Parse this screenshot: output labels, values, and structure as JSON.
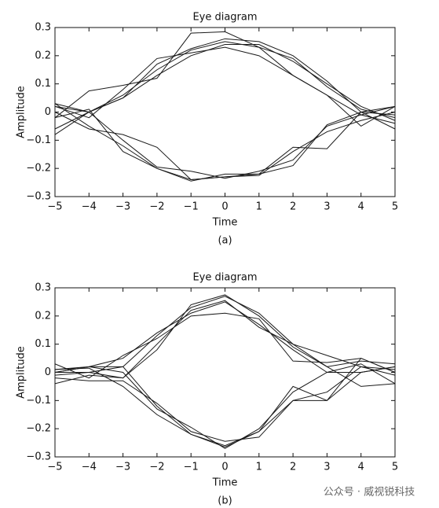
{
  "chart_data": [
    {
      "type": "line",
      "title": "Eye diagram",
      "xlabel": "Time",
      "ylabel": "Amplitude",
      "caption": "(a)",
      "x": [
        -5,
        -4,
        -3,
        -2,
        -1,
        0,
        1,
        2,
        3,
        4,
        5
      ],
      "xlim": [
        -5,
        5
      ],
      "ylim": [
        -0.3,
        0.3
      ],
      "xticks": [
        {
          "value": -5,
          "label": "−5"
        },
        {
          "value": -4,
          "label": "−4"
        },
        {
          "value": -3,
          "label": "−3"
        },
        {
          "value": -2,
          "label": "−2"
        },
        {
          "value": -1,
          "label": "−1"
        },
        0,
        1,
        2,
        3,
        4,
        5
      ],
      "yticks": [
        {
          "value": -0.3,
          "label": "−0.3"
        },
        {
          "value": -0.2,
          "label": "−0.2"
        },
        {
          "value": -0.1,
          "label": "−0.1"
        },
        0,
        0.1,
        0.2,
        0.3
      ],
      "grid": false,
      "series": [
        {
          "color": "#1a1a1a",
          "values": [
            0.03,
            0,
            0.05,
            0.13,
            0.2,
            0.24,
            0.24,
            0.18,
            0.1,
            0.02,
            -0.03
          ]
        },
        {
          "color": "#1a1a1a",
          "values": [
            -0.06,
            0,
            0.06,
            0.15,
            0.22,
            0.25,
            0.23,
            0.13,
            0.06,
            -0.01,
            0.02
          ]
        },
        {
          "color": "#1a1a1a",
          "values": [
            0.02,
            -0.02,
            0.08,
            0.19,
            0.21,
            0.23,
            0.2,
            0.13,
            0.06,
            -0.05,
            0.02
          ]
        },
        {
          "color": "#1a1a1a",
          "values": [
            -0.02,
            0.075,
            0.095,
            0.12,
            0.28,
            0.285,
            0.23,
            0.19,
            0.09,
            0.01,
            -0.02
          ]
        },
        {
          "color": "#1a1a1a",
          "values": [
            -0.08,
            0,
            0.05,
            0.17,
            0.225,
            0.26,
            0.25,
            0.2,
            0.11,
            0,
            -0.06
          ]
        },
        {
          "color": "#1a1a1a",
          "values": [
            0.03,
            -0.05,
            -0.12,
            -0.2,
            -0.245,
            -0.22,
            -0.22,
            -0.125,
            -0.13,
            0,
            0.02
          ]
        },
        {
          "color": "#1a1a1a",
          "values": [
            0.02,
            0,
            -0.1,
            -0.195,
            -0.21,
            -0.235,
            -0.21,
            -0.17,
            -0.05,
            -0.01,
            -0.04
          ]
        },
        {
          "color": "#1a1a1a",
          "values": [
            -0.02,
            0.01,
            -0.14,
            -0.2,
            -0.24,
            -0.23,
            -0.22,
            -0.19,
            -0.045,
            0,
            -0.01
          ]
        },
        {
          "color": "#1a1a1a",
          "values": [
            0,
            -0.06,
            -0.08,
            -0.125,
            -0.24,
            -0.23,
            -0.225,
            -0.14,
            -0.07,
            -0.03,
            0
          ]
        }
      ]
    },
    {
      "type": "line",
      "title": "Eye diagram",
      "xlabel": "Time",
      "ylabel": "Amplitude",
      "caption": "(b)",
      "x": [
        -5,
        -4,
        -3,
        -2,
        -1,
        0,
        1,
        2,
        3,
        4,
        5
      ],
      "xlim": [
        -5,
        5
      ],
      "ylim": [
        -0.3,
        0.3
      ],
      "xticks": [
        {
          "value": -5,
          "label": "−5"
        },
        {
          "value": -4,
          "label": "−4"
        },
        {
          "value": -3,
          "label": "−3"
        },
        {
          "value": -2,
          "label": "−2"
        },
        {
          "value": -1,
          "label": "−1"
        },
        0,
        1,
        2,
        3,
        4,
        5
      ],
      "yticks": [
        {
          "value": -0.3,
          "label": "−0.3"
        },
        {
          "value": -0.2,
          "label": "−0.2"
        },
        {
          "value": -0.1,
          "label": "−0.1"
        },
        0,
        0.1,
        0.2,
        0.3
      ],
      "grid": false,
      "series": [
        {
          "color": "#1a1a1a",
          "values": [
            0,
            0.02,
            0.02,
            0.13,
            0.23,
            0.27,
            0.21,
            0.1,
            0.02,
            -0.05,
            -0.04
          ]
        },
        {
          "color": "#1a1a1a",
          "values": [
            0.03,
            -0.02,
            0.06,
            0.12,
            0.2,
            0.21,
            0.19,
            0.04,
            0.035,
            0.05,
            0
          ]
        },
        {
          "color": "#1a1a1a",
          "values": [
            -0.01,
            0,
            -0.02,
            0.1,
            0.22,
            0.255,
            0.16,
            0.1,
            0.06,
            0.02,
            0.01
          ]
        },
        {
          "color": "#1a1a1a",
          "values": [
            -0.04,
            -0.01,
            -0.02,
            0.08,
            0.24,
            0.275,
            0.2,
            0.09,
            0.02,
            0.04,
            0.03
          ]
        },
        {
          "color": "#1a1a1a",
          "values": [
            0.01,
            0.02,
            0.05,
            0.14,
            0.21,
            0.25,
            0.17,
            0.08,
            0,
            0,
            0.02
          ]
        },
        {
          "color": "#1a1a1a",
          "values": [
            0,
            0,
            0.02,
            -0.12,
            -0.22,
            -0.265,
            -0.21,
            -0.05,
            -0.1,
            0.05,
            0
          ]
        },
        {
          "color": "#1a1a1a",
          "values": [
            -0.02,
            -0.03,
            -0.03,
            -0.11,
            -0.21,
            -0.245,
            -0.23,
            -0.1,
            -0.07,
            0.02,
            -0.01
          ]
        },
        {
          "color": "#1a1a1a",
          "values": [
            0.01,
            0.015,
            -0.05,
            -0.15,
            -0.22,
            -0.26,
            -0.21,
            -0.1,
            -0.1,
            0,
            0.02
          ]
        },
        {
          "color": "#1a1a1a",
          "values": [
            0,
            0.02,
            0,
            -0.13,
            -0.195,
            -0.27,
            -0.2,
            -0.07,
            0,
            0.03,
            -0.04
          ]
        }
      ]
    }
  ],
  "watermark": "公众号 · 威视锐科技"
}
